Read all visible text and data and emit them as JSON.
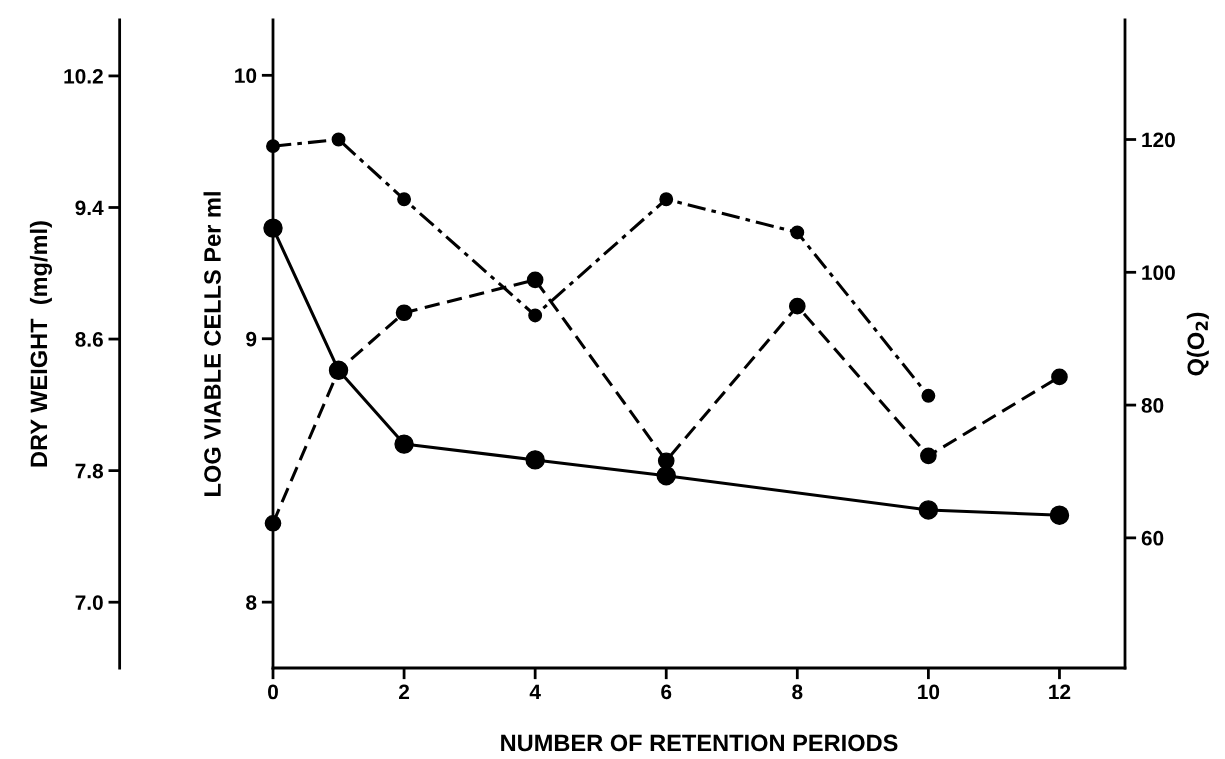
{
  "chart_data": {
    "type": "line",
    "xlabel": "NUMBER OF RETENTION PERIODS",
    "ylabel": "LOG VIABLE CELLS Per ml",
    "y2label": "Q(O$_{2}$)",
    "y3label": "DRY WEIGHT  (mg/ml)",
    "xlim": [
      0,
      13
    ],
    "xticks": [
      0,
      2,
      4,
      6,
      8,
      10,
      12
    ],
    "ylim": [
      7.75,
      10.21
    ],
    "yticks": [
      8,
      9,
      10
    ],
    "y2lim": [
      40.4,
      138
    ],
    "y2ticks": [
      60,
      80,
      100,
      120
    ],
    "y3lim": [
      6.6,
      10.54
    ],
    "y3ticks": [
      {
        "value": 7.0,
        "label": "7.0"
      },
      7.8,
      8.6,
      9.4,
      10.2
    ],
    "marker": "circle",
    "grid": false,
    "legend": false,
    "series": [
      {
        "axis": "y",
        "color": "#000000",
        "line_style": "solid",
        "x": [
          0,
          1,
          2,
          4,
          6,
          10,
          12
        ],
        "values": [
          9.42,
          8.88,
          8.6,
          8.54,
          8.48,
          8.35,
          8.33
        ]
      },
      {
        "axis": "y3",
        "color": "#000000",
        "line_style": "dashed",
        "x": [
          0,
          1,
          2,
          4,
          6,
          8,
          10,
          12
        ],
        "values": [
          7.48,
          8.41,
          8.76,
          8.96,
          7.86,
          8.8,
          7.89,
          8.37
        ]
      },
      {
        "axis": "y2",
        "color": "#000000",
        "line_style": "dashdot",
        "x": [
          0,
          1,
          2,
          4,
          6,
          8,
          10
        ],
        "values": [
          119,
          120,
          111,
          93.5,
          111,
          106,
          81.4
        ]
      }
    ]
  }
}
